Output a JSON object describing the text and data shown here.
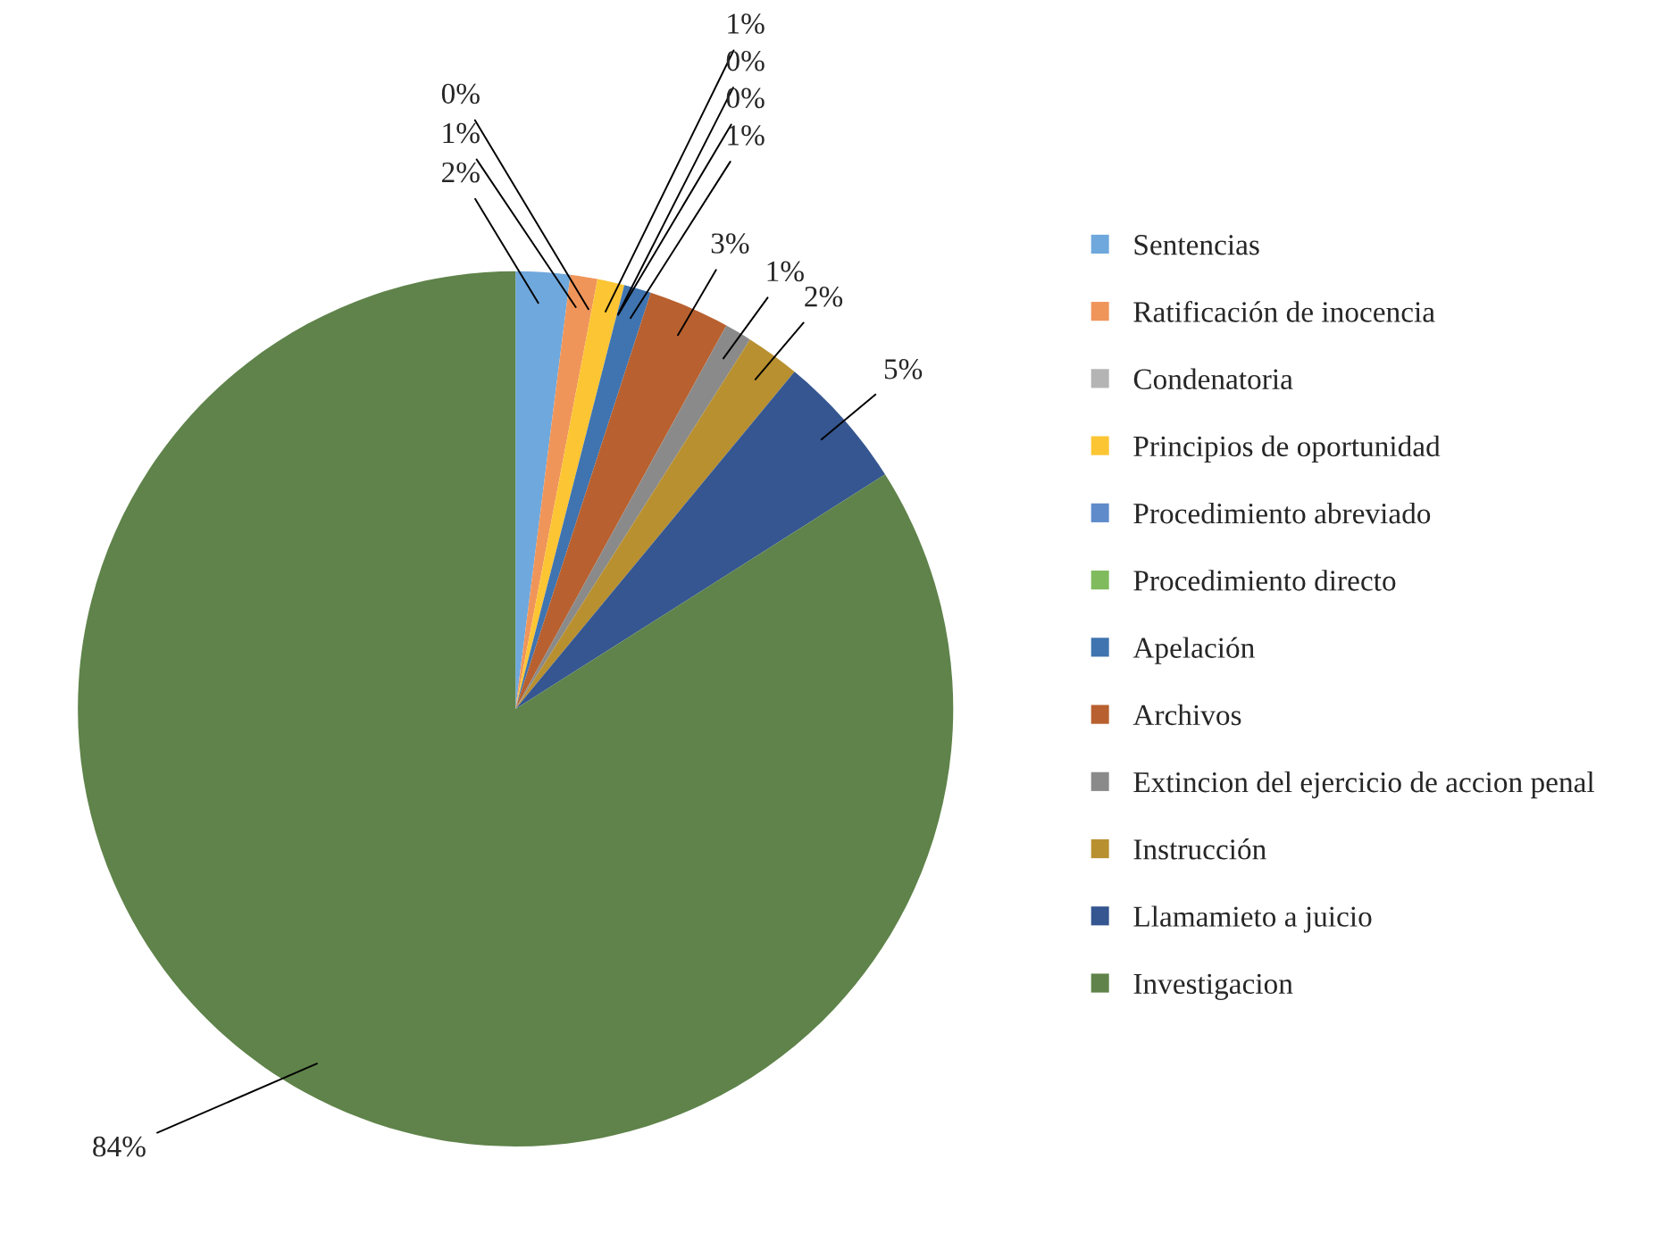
{
  "chart_data": {
    "type": "pie",
    "categories": [
      "Sentencias",
      "Ratificación de inocencia",
      "Condenatoria",
      "Principios de oportunidad",
      "Procedimiento abreviado",
      "Procedimiento directo",
      "Apelación",
      "Archivos",
      "Extincion del ejercicio de accion penal",
      "Instrucción",
      "Llamamieto a juicio",
      "Investigacion"
    ],
    "values": [
      2,
      1,
      0,
      1,
      0,
      0,
      1,
      3,
      1,
      2,
      5,
      84
    ],
    "value_labels": [
      "2%",
      "1%",
      "0%",
      "1%",
      "0%",
      "0%",
      "1%",
      "3%",
      "1%",
      "2%",
      "5%",
      "84%"
    ],
    "colors": [
      "#6fa8dc",
      "#f0955a",
      "#b4b4b4",
      "#fcc534",
      "#5f8bcb",
      "#80bb5e",
      "#3f74b0",
      "#b8602f",
      "#8a8a8a",
      "#b8902f",
      "#355690",
      "#5f834a"
    ],
    "legend": "right"
  }
}
